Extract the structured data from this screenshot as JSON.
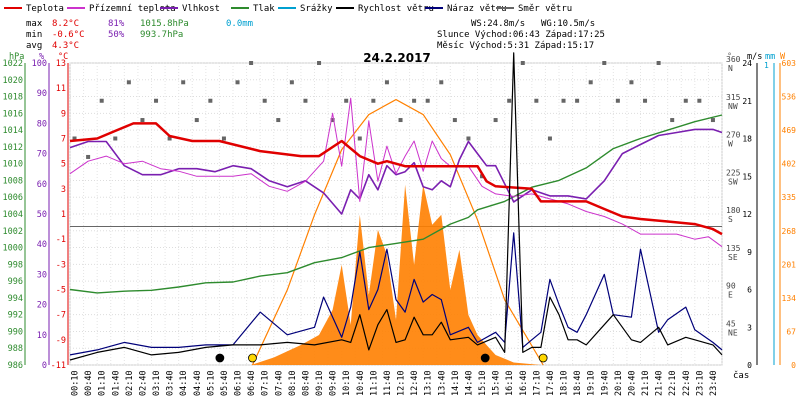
{
  "legend": [
    {
      "label": "Teplota",
      "color": "#e00000"
    },
    {
      "label": "Přízemní teplota",
      "color": "#cc33cc"
    },
    {
      "label": "Vlhkost",
      "color": "#7a1fb0"
    },
    {
      "label": "Tlak",
      "color": "#2e8b2e"
    },
    {
      "label": "Srážky",
      "color": "#00a0d0"
    },
    {
      "label": "Rychlost větru",
      "color": "#000000"
    },
    {
      "label": "Náraz větru",
      "color": "#00007a"
    },
    {
      "label": "Směr větru",
      "color": "#666666"
    }
  ],
  "stats": {
    "max_label": "max",
    "max_temp": "8.2°C",
    "max_hum": "81%",
    "max_press": "1015.8hPa",
    "max_rain": "0.0mm",
    "min_label": "min",
    "min_temp": "-0.6°C",
    "min_hum": "50%",
    "min_press": "993.7hPa",
    "avg_label": "avg",
    "avg_temp": "4.3°C"
  },
  "info": {
    "ws": "WS:24.8m/s",
    "wg": "WG:10.5m/s",
    "sun": "Slunce Východ:06:43  Západ:17:25",
    "moon": "Měsíc  Východ:5:31  Západ:15:17"
  },
  "title": "24.2.2017",
  "colors": {
    "temp": "#e00000",
    "ground": "#cc33cc",
    "hum": "#7a1fb0",
    "press": "#2e8b2e",
    "rain": "#00a0d0",
    "wind": "#000000",
    "gust": "#00007a",
    "dir": "#666666",
    "solar": "#ff8000"
  },
  "axes": {
    "hpa_title": "hPa",
    "pct_title": "%",
    "temp_title": "°C",
    "dir_title": "°",
    "ms_title": "m/s",
    "mm_title": "mm",
    "w_title": "W",
    "hpa_ticks": [
      "1022",
      "1020",
      "1018",
      "1016",
      "1014",
      "1012",
      "1010",
      "1008",
      "1006",
      "1004",
      "1002",
      "1000",
      "998",
      "996",
      "994",
      "992",
      "990",
      "988",
      "986"
    ],
    "pct_ticks": [
      "100",
      "90",
      "80",
      "70",
      "60",
      "50",
      "40",
      "30",
      "20",
      "10",
      "0"
    ],
    "temp_ticks": [
      "13",
      "11",
      "9",
      "7",
      "5",
      "3",
      "1",
      "-1",
      "-3",
      "-5",
      "-7",
      "-9",
      "-11"
    ],
    "dir_ticks": [
      [
        "360",
        "N"
      ],
      [
        "315",
        "NW"
      ],
      [
        "270",
        "W"
      ],
      [
        "225",
        "SW"
      ],
      [
        "180",
        "S"
      ],
      [
        "135",
        "SE"
      ],
      [
        "90",
        "E"
      ],
      [
        "45",
        "NE"
      ]
    ],
    "ms_ticks": [
      "24",
      "21",
      "18",
      "15",
      "12",
      "9",
      "6",
      "3",
      "0"
    ],
    "ms_top": "1",
    "w_ticks": [
      "603",
      "536",
      "469",
      "402",
      "335",
      "268",
      "201",
      "134",
      "67",
      "0"
    ],
    "x_labels": [
      "00:10",
      "00:40",
      "01:10",
      "01:40",
      "02:10",
      "02:40",
      "03:10",
      "03:40",
      "04:10",
      "04:40",
      "05:10",
      "05:40",
      "06:10",
      "06:40",
      "07:10",
      "07:40",
      "08:10",
      "08:40",
      "09:10",
      "09:40",
      "10:10",
      "10:40",
      "11:10",
      "11:40",
      "12:10",
      "12:40",
      "13:10",
      "13:40",
      "14:10",
      "14:40",
      "15:10",
      "15:40",
      "16:10",
      "16:40",
      "17:10",
      "17:40",
      "18:10",
      "18:40",
      "19:10",
      "19:40",
      "20:10",
      "20:40",
      "21:10",
      "21:40",
      "22:10",
      "22:40",
      "23:10",
      "23:40"
    ],
    "x_title": "čas"
  },
  "chart_data": {
    "type": "line",
    "title": "24.2.2017",
    "x_label": "čas",
    "x_range": [
      "00:00",
      "24:00"
    ],
    "series": [
      {
        "name": "Teplota",
        "axis": "°C",
        "x": [
          "00:00",
          "01:00",
          "01:40",
          "02:20",
          "03:10",
          "03:40",
          "04:30",
          "05:30",
          "07:00",
          "08:30",
          "09:10",
          "10:00",
          "10:40",
          "11:20",
          "11:40",
          "12:20",
          "13:20",
          "14:20",
          "15:00",
          "15:20",
          "15:40",
          "17:00",
          "17:20",
          "18:20",
          "19:00",
          "19:40",
          "20:20",
          "21:00",
          "22:00",
          "23:00",
          "23:40",
          "24:00"
        ],
        "values": [
          6.8,
          7.0,
          7.6,
          8.2,
          8.2,
          7.2,
          6.8,
          6.8,
          6.0,
          5.6,
          5.6,
          6.8,
          5.6,
          5.0,
          5.2,
          4.8,
          4.8,
          4.8,
          4.8,
          3.6,
          3.2,
          3.0,
          2.0,
          2.0,
          2.0,
          1.4,
          0.8,
          0.6,
          0.4,
          0.2,
          -0.2,
          -0.6
        ]
      },
      {
        "name": "Přízemní teplota",
        "axis": "°C",
        "x": [
          "00:00",
          "00:40",
          "01:20",
          "02:00",
          "02:40",
          "03:20",
          "04:00",
          "04:40",
          "05:20",
          "06:00",
          "06:40",
          "07:20",
          "08:00",
          "08:40",
          "09:20",
          "09:40",
          "10:00",
          "10:20",
          "10:40",
          "11:00",
          "11:20",
          "11:40",
          "12:00",
          "12:20",
          "12:40",
          "13:00",
          "13:20",
          "13:40",
          "14:00",
          "14:40",
          "15:10",
          "15:40",
          "16:20",
          "17:00",
          "17:40",
          "18:20",
          "19:00",
          "19:40",
          "20:20",
          "21:00",
          "21:40",
          "22:20",
          "23:00",
          "23:30",
          "24:00"
        ],
        "values": [
          4.2,
          5.2,
          5.6,
          5.0,
          5.2,
          4.6,
          4.4,
          4.0,
          4.0,
          4.0,
          4.2,
          3.2,
          2.8,
          3.6,
          5.2,
          9.0,
          4.8,
          10.2,
          2.0,
          8.4,
          3.6,
          6.4,
          4.2,
          5.6,
          6.8,
          4.4,
          6.8,
          5.4,
          4.8,
          4.8,
          3.2,
          2.6,
          2.4,
          2.6,
          2.2,
          1.8,
          1.2,
          0.8,
          0.2,
          -0.6,
          -0.6,
          -0.6,
          -1.0,
          -0.8,
          -1.6
        ]
      },
      {
        "name": "Vlhkost",
        "axis": "%",
        "x": [
          "00:00",
          "00:40",
          "01:20",
          "02:00",
          "02:40",
          "03:20",
          "04:00",
          "04:40",
          "05:20",
          "06:00",
          "06:40",
          "07:20",
          "08:00",
          "08:40",
          "09:20",
          "10:00",
          "10:20",
          "10:40",
          "11:00",
          "11:20",
          "11:40",
          "12:00",
          "12:20",
          "12:40",
          "13:00",
          "13:20",
          "13:40",
          "14:00",
          "14:20",
          "14:40",
          "15:00",
          "15:20",
          "15:40",
          "16:20",
          "17:00",
          "17:40",
          "18:20",
          "19:00",
          "19:40",
          "20:20",
          "21:00",
          "21:40",
          "22:20",
          "23:00",
          "23:40",
          "24:00"
        ],
        "values": [
          72,
          74,
          74,
          66,
          63,
          63,
          65,
          65,
          64,
          66,
          65,
          61,
          59,
          61,
          57,
          50,
          58,
          55,
          63,
          58,
          66,
          63,
          64,
          67,
          59,
          58,
          61,
          59,
          68,
          74,
          70,
          66,
          66,
          54,
          58,
          56,
          56,
          55,
          61,
          70,
          73,
          76,
          77,
          78,
          78,
          77
        ]
      },
      {
        "name": "Tlak",
        "axis": "hPa",
        "x": [
          "00:00",
          "01:00",
          "02:00",
          "03:00",
          "04:00",
          "05:00",
          "06:00",
          "07:00",
          "08:00",
          "09:00",
          "10:00",
          "11:00",
          "12:00",
          "13:00",
          "14:00",
          "14:40",
          "15:00",
          "16:00",
          "17:00",
          "18:00",
          "19:00",
          "20:00",
          "21:00",
          "22:00",
          "23:00",
          "24:00"
        ],
        "values": [
          995.0,
          994.6,
          994.8,
          994.9,
          995.3,
          995.8,
          995.9,
          996.6,
          997.0,
          998.2,
          998.8,
          1000.0,
          1000.5,
          1001.0,
          1002.8,
          1003.6,
          1004.5,
          1005.5,
          1007.2,
          1008.0,
          1009.5,
          1011.8,
          1013.0,
          1014.0,
          1015.0,
          1015.8
        ]
      },
      {
        "name": "Rychlost větru",
        "axis": "m/s",
        "x": [
          "00:00",
          "01:00",
          "02:00",
          "03:00",
          "04:00",
          "05:00",
          "06:00",
          "07:00",
          "08:00",
          "09:00",
          "10:00",
          "10:20",
          "10:40",
          "11:00",
          "11:20",
          "11:40",
          "12:00",
          "12:20",
          "12:40",
          "13:00",
          "13:20",
          "13:40",
          "14:00",
          "14:40",
          "15:00",
          "15:40",
          "16:00",
          "16:20",
          "16:40",
          "17:00",
          "17:20",
          "17:40",
          "18:00",
          "18:20",
          "18:40",
          "19:00",
          "19:40",
          "20:00",
          "20:40",
          "21:00",
          "21:40",
          "22:00",
          "22:40",
          "23:00",
          "23:40",
          "24:00"
        ],
        "values": [
          0.4,
          1.0,
          1.4,
          0.8,
          1.0,
          1.4,
          1.6,
          1.6,
          1.8,
          1.6,
          2.0,
          1.8,
          4.0,
          1.2,
          3.2,
          4.4,
          1.8,
          2.0,
          3.8,
          2.4,
          2.4,
          3.4,
          2.0,
          2.2,
          1.6,
          2.2,
          1.0,
          24.8,
          1.0,
          1.4,
          1.4,
          5.4,
          4.0,
          2.0,
          2.0,
          1.6,
          3.2,
          4.0,
          2.0,
          1.8,
          3.0,
          1.6,
          2.2,
          2.0,
          1.6,
          0.8
        ]
      },
      {
        "name": "Náraz větru",
        "axis": "m/s",
        "x": [
          "00:00",
          "01:00",
          "02:00",
          "03:00",
          "04:00",
          "05:00",
          "06:00",
          "07:00",
          "08:00",
          "09:00",
          "09:20",
          "10:00",
          "10:20",
          "10:40",
          "11:00",
          "11:20",
          "11:40",
          "12:00",
          "12:20",
          "12:40",
          "13:00",
          "13:20",
          "13:40",
          "14:00",
          "14:40",
          "15:00",
          "15:40",
          "16:00",
          "16:20",
          "16:40",
          "17:00",
          "17:20",
          "17:40",
          "18:00",
          "18:20",
          "18:40",
          "19:00",
          "19:40",
          "20:00",
          "20:40",
          "21:00",
          "21:40",
          "22:00",
          "22:40",
          "23:00",
          "23:40",
          "24:00"
        ],
        "values": [
          0.8,
          1.2,
          1.8,
          1.4,
          1.4,
          1.6,
          1.6,
          4.2,
          2.4,
          3.0,
          5.4,
          2.2,
          4.6,
          9.0,
          4.4,
          6.0,
          9.2,
          5.2,
          4.2,
          6.8,
          5.0,
          5.6,
          5.2,
          2.4,
          3.0,
          1.8,
          2.6,
          1.8,
          10.5,
          1.4,
          2.0,
          2.6,
          6.8,
          4.8,
          3.0,
          2.6,
          4.0,
          7.2,
          4.0,
          3.8,
          9.2,
          2.6,
          3.6,
          4.6,
          2.8,
          1.8,
          1.2
        ]
      },
      {
        "name": "Sluneční záření",
        "axis": "W",
        "x": [
          "06:40",
          "07:30",
          "08:30",
          "09:10",
          "09:40",
          "10:00",
          "10:20",
          "10:40",
          "11:00",
          "11:20",
          "11:40",
          "12:00",
          "12:20",
          "12:40",
          "13:00",
          "13:20",
          "13:40",
          "14:00",
          "14:20",
          "14:40",
          "15:00",
          "15:40",
          "16:20",
          "17:20"
        ],
        "values": [
          0,
          15,
          40,
          60,
          110,
          200,
          80,
          300,
          140,
          270,
          220,
          90,
          360,
          200,
          360,
          280,
          300,
          150,
          230,
          100,
          60,
          20,
          5,
          0
        ]
      },
      {
        "name": "Sluneční křivka",
        "axis": "W",
        "x": [
          "06:43",
          "08:00",
          "09:00",
          "10:00",
          "11:00",
          "12:00",
          "13:00",
          "14:00",
          "15:00",
          "16:00",
          "17:25"
        ],
        "values": [
          0,
          150,
          300,
          430,
          500,
          530,
          500,
          420,
          290,
          130,
          0
        ]
      },
      {
        "name": "Směr větru",
        "axis": "°",
        "x": [
          "00:10",
          "00:40",
          "01:10",
          "01:40",
          "02:10",
          "02:40",
          "03:10",
          "03:40",
          "04:10",
          "04:40",
          "05:10",
          "05:40",
          "06:10",
          "06:40",
          "07:10",
          "07:40",
          "08:10",
          "08:40",
          "09:10",
          "09:40",
          "10:10",
          "10:40",
          "11:10",
          "11:40",
          "12:10",
          "12:40",
          "13:10",
          "13:40",
          "14:10",
          "14:40",
          "15:10",
          "15:40",
          "16:10",
          "16:40",
          "17:10",
          "17:40",
          "18:10",
          "18:40",
          "19:10",
          "19:40",
          "20:10",
          "20:40",
          "21:10",
          "21:40",
          "22:10",
          "22:40",
          "23:10",
          "23:40"
        ],
        "values": [
          270,
          248,
          315,
          270,
          337,
          292,
          315,
          270,
          337,
          292,
          315,
          270,
          337,
          360,
          315,
          292,
          337,
          315,
          360,
          292,
          315,
          270,
          315,
          337,
          292,
          315,
          315,
          337,
          292,
          270,
          225,
          292,
          315,
          360,
          315,
          270,
          315,
          315,
          337,
          360,
          315,
          337,
          315,
          360,
          292,
          315,
          315,
          292
        ]
      }
    ],
    "markers": [
      {
        "label": "moonrise",
        "x": "05:31",
        "color": "#000000"
      },
      {
        "label": "sunrise",
        "x": "06:43",
        "color": "#ffd700"
      },
      {
        "label": "moonset",
        "x": "15:17",
        "color": "#000000"
      },
      {
        "label": "sunset",
        "x": "17:25",
        "color": "#ffd700"
      }
    ],
    "axis_ranges": {
      "hPa": [
        986,
        1022
      ],
      "%": [
        0,
        100
      ],
      "°C": [
        -11,
        13
      ],
      "°": [
        0,
        360
      ],
      "m/s": [
        0,
        24
      ],
      "W": [
        0,
        603
      ]
    },
    "grid": true
  }
}
